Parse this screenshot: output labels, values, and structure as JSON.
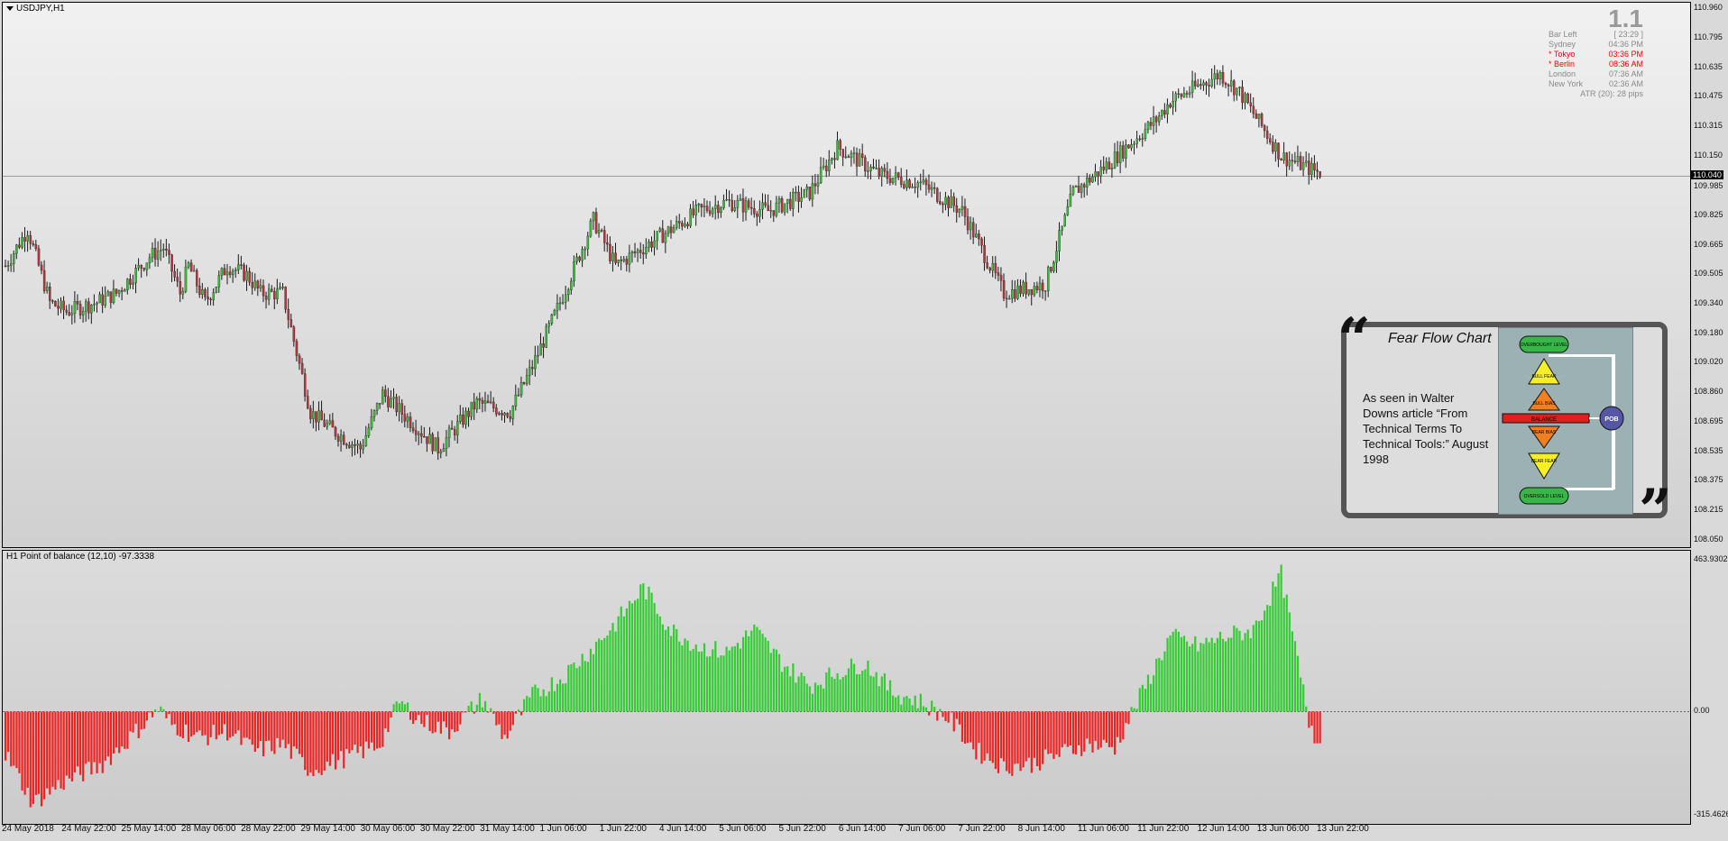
{
  "main_pane": {
    "title": "USDJPY,H1",
    "current_price": "110.040"
  },
  "osc_pane": {
    "title": "H1 Point of balance (12,10) -97.3338"
  },
  "ratio": "1.1",
  "sessions": [
    {
      "name": "Bar Left",
      "value": "[ 23:29 ]",
      "color": "#8a8a8a"
    },
    {
      "name": "Sydney",
      "value": "04:36 PM",
      "color": "#8a8a8a"
    },
    {
      "name": "* Tokyo",
      "value": "03:36 PM",
      "color": "#ff0000"
    },
    {
      "name": "* Berlin",
      "value": "08:36 AM",
      "color": "#ff0000"
    },
    {
      "name": "London",
      "value": "07:36 AM",
      "color": "#8a8a8a"
    },
    {
      "name": "New York",
      "value": "02:36 AM",
      "color": "#8a8a8a"
    }
  ],
  "atr": "ATR (20): 28 pips",
  "fear_flow": {
    "title": "Fear Flow Chart",
    "desc": "As seen in Walter Downs article “From Technical Terms To Technical Tools:” August 1998",
    "labels": {
      "overbought": "OVERBOUGHT LEVEL",
      "bull_fear": "BULL FEAR",
      "bull_bias": "BULL BIAS",
      "balance": "BALANCE",
      "bear_bias": "BEAR BIAS",
      "bear_fear": "BEAR FEAR",
      "oversold": "OVERSOLD LEVEL",
      "pob": "POB"
    }
  },
  "chart_data": [
    {
      "type": "candlestick",
      "title": "USDJPY,H1",
      "y_ticks": [
        "110.960",
        "110.795",
        "110.635",
        "110.475",
        "110.315",
        "110.150",
        "109.985",
        "109.825",
        "109.665",
        "109.505",
        "109.340",
        "109.180",
        "109.020",
        "108.860",
        "108.695",
        "108.535",
        "108.375",
        "108.215",
        "108.050"
      ],
      "ylim": [
        108.05,
        110.96
      ],
      "x_ticks": [
        "24 May 2018",
        "24 May 22:00",
        "25 May 14:00",
        "28 May 06:00",
        "28 May 22:00",
        "29 May 14:00",
        "30 May 06:00",
        "30 May 22:00",
        "31 May 14:00",
        "1 Jun 06:00",
        "1 Jun 22:00",
        "4 Jun 14:00",
        "5 Jun 06:00",
        "5 Jun 22:00",
        "6 Jun 14:00",
        "7 Jun 06:00",
        "7 Jun 22:00",
        "8 Jun 14:00",
        "11 Jun 06:00",
        "11 Jun 22:00",
        "12 Jun 14:00",
        "13 Jun 06:00",
        "13 Jun 22:00"
      ],
      "anchors": [
        [
          0,
          109.55
        ],
        [
          8,
          109.75
        ],
        [
          16,
          109.35
        ],
        [
          22,
          109.3
        ],
        [
          33,
          109.35
        ],
        [
          40,
          109.4
        ],
        [
          52,
          109.6
        ],
        [
          57,
          109.65
        ],
        [
          63,
          109.4
        ],
        [
          66,
          109.55
        ],
        [
          72,
          109.35
        ],
        [
          80,
          109.55
        ],
        [
          87,
          109.5
        ],
        [
          92,
          109.4
        ],
        [
          100,
          109.4
        ],
        [
          110,
          108.75
        ],
        [
          118,
          108.65
        ],
        [
          128,
          108.55
        ],
        [
          136,
          108.85
        ],
        [
          146,
          108.7
        ],
        [
          156,
          108.55
        ],
        [
          170,
          108.8
        ],
        [
          182,
          108.75
        ],
        [
          190,
          109.0
        ],
        [
          200,
          109.35
        ],
        [
          212,
          109.8
        ],
        [
          220,
          109.55
        ],
        [
          235,
          109.7
        ],
        [
          250,
          109.85
        ],
        [
          260,
          109.9
        ],
        [
          275,
          109.85
        ],
        [
          290,
          109.95
        ],
        [
          300,
          110.2
        ],
        [
          315,
          110.05
        ],
        [
          330,
          110.0
        ],
        [
          345,
          109.85
        ],
        [
          360,
          109.4
        ],
        [
          375,
          109.45
        ],
        [
          385,
          109.95
        ],
        [
          397,
          110.1
        ],
        [
          415,
          110.35
        ],
        [
          420,
          110.45
        ],
        [
          438,
          110.6
        ],
        [
          445,
          110.5
        ],
        [
          460,
          110.15
        ],
        [
          475,
          110.05
        ]
      ],
      "n": 475
    },
    {
      "type": "bar",
      "title": "H1 Point of balance (12,10)",
      "value_label": "-97.3338",
      "y_ticks": [
        "463.9302",
        "0.00",
        "-315.4626"
      ],
      "ylim": [
        -315.4626,
        463.9302
      ],
      "anchors": [
        [
          0,
          -130
        ],
        [
          10,
          -280
        ],
        [
          20,
          -220
        ],
        [
          35,
          -160
        ],
        [
          45,
          -80
        ],
        [
          55,
          10
        ],
        [
          60,
          -40
        ],
        [
          70,
          -80
        ],
        [
          80,
          -60
        ],
        [
          90,
          -120
        ],
        [
          100,
          -100
        ],
        [
          110,
          -180
        ],
        [
          120,
          -150
        ],
        [
          135,
          -100
        ],
        [
          142,
          30
        ],
        [
          150,
          -30
        ],
        [
          160,
          -60
        ],
        [
          172,
          40
        ],
        [
          180,
          -80
        ],
        [
          190,
          50
        ],
        [
          200,
          100
        ],
        [
          210,
          180
        ],
        [
          220,
          270
        ],
        [
          230,
          380
        ],
        [
          240,
          250
        ],
        [
          250,
          200
        ],
        [
          260,
          180
        ],
        [
          270,
          250
        ],
        [
          280,
          150
        ],
        [
          290,
          80
        ],
        [
          300,
          120
        ],
        [
          310,
          150
        ],
        [
          320,
          60
        ],
        [
          330,
          30
        ],
        [
          340,
          -20
        ],
        [
          350,
          -120
        ],
        [
          360,
          -170
        ],
        [
          370,
          -160
        ],
        [
          380,
          -130
        ],
        [
          390,
          -100
        ],
        [
          400,
          -110
        ],
        [
          410,
          60
        ],
        [
          420,
          230
        ],
        [
          430,
          200
        ],
        [
          440,
          230
        ],
        [
          450,
          250
        ],
        [
          460,
          420
        ],
        [
          470,
          -30
        ],
        [
          475,
          -97
        ]
      ],
      "n": 475
    }
  ]
}
